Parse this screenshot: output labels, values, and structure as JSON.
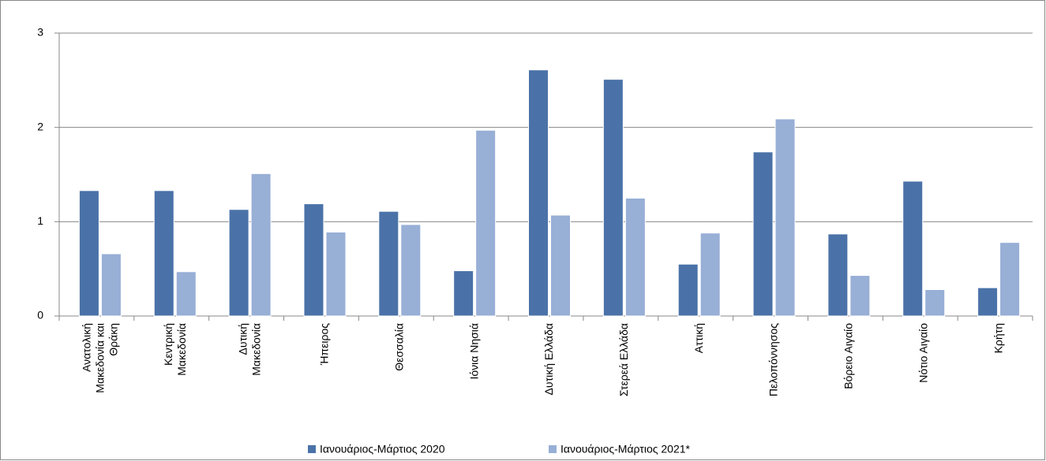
{
  "chart_data": {
    "type": "bar",
    "categories": [
      "Ανατολική Μακεδονία και Θράκη",
      "Κεντρική Μακεδονία",
      "Δυτική Μακεδονία",
      "Ήπειρος",
      "Θεσσαλία",
      "Ιόνια Νησιά",
      "Δυτική Ελλάδα",
      "Στερεά Ελλάδα",
      "Αττική",
      "Πελοπόννησος",
      "Βόρειο Αιγαίο",
      "Νότιο Αιγαίο",
      "Κρήτη"
    ],
    "series": [
      {
        "name": "Ιανουάριος-Μάρτιος 2020",
        "color": "#4a72a8",
        "values": [
          1.33,
          1.33,
          1.13,
          1.19,
          1.11,
          0.48,
          2.61,
          2.51,
          0.55,
          1.74,
          0.87,
          1.43,
          0.3
        ]
      },
      {
        "name": "Ιανουάριος-Μάρτιος 2021*",
        "color": "#98afd6",
        "values": [
          0.66,
          0.47,
          1.51,
          0.89,
          0.97,
          1.97,
          1.07,
          1.25,
          0.88,
          2.09,
          0.43,
          0.28,
          0.78
        ]
      }
    ],
    "ylim": [
      0,
      3
    ],
    "yticks": [
      0,
      1,
      2,
      3
    ],
    "grid": true,
    "legend": "bottom"
  }
}
